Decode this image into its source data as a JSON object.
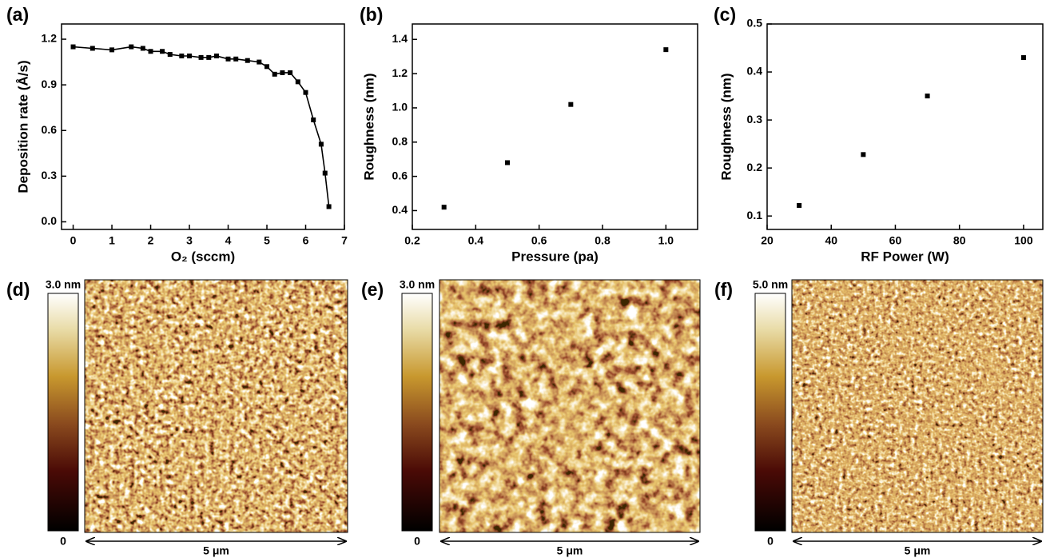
{
  "chart_data": [
    {
      "type": "line",
      "panel_label": "(a)",
      "x_label": "O₂ (sccm)",
      "y_label": "Deposition rate (Å/s)",
      "color": "#000000",
      "x": [
        0,
        0.5,
        1.0,
        1.5,
        1.8,
        2.0,
        2.3,
        2.5,
        2.8,
        3.0,
        3.3,
        3.5,
        3.7,
        4.0,
        4.2,
        4.5,
        4.8,
        5.0,
        5.2,
        5.4,
        5.6,
        5.8,
        6.0,
        6.2,
        6.4,
        6.5,
        6.6
      ],
      "values": [
        1.15,
        1.14,
        1.13,
        1.15,
        1.14,
        1.12,
        1.12,
        1.1,
        1.09,
        1.09,
        1.08,
        1.08,
        1.09,
        1.07,
        1.07,
        1.06,
        1.05,
        1.02,
        0.97,
        0.98,
        0.98,
        0.92,
        0.85,
        0.67,
        0.51,
        0.32,
        0.1
      ],
      "xlim": [
        -0.3,
        7
      ],
      "xticks": [
        0,
        1,
        2,
        3,
        4,
        5,
        6,
        7
      ],
      "ylim": [
        -0.05,
        1.3
      ],
      "yticks": [
        {
          "value": 0,
          "label": "0.0"
        },
        0.3,
        0.6,
        0.9,
        1.2
      ]
    },
    {
      "type": "scatter",
      "panel_label": "(b)",
      "x_label": "Pressure (pa)",
      "y_label": "Roughness (nm)",
      "color": "#000000",
      "x": [
        0.3,
        0.5,
        0.7,
        1.0
      ],
      "values": [
        0.42,
        0.68,
        1.02,
        1.34
      ],
      "xlim": [
        0.2,
        1.1
      ],
      "xticks": [
        0.2,
        0.4,
        0.6,
        0.8,
        {
          "value": 1.0,
          "label": "1.0"
        }
      ],
      "ylim": [
        0.29,
        1.49
      ],
      "yticks": [
        0.4,
        0.6,
        0.8,
        {
          "value": 1.0,
          "label": "1.0"
        },
        1.2,
        1.4
      ]
    },
    {
      "type": "scatter",
      "panel_label": "(c)",
      "x_label": "RF Power (W)",
      "y_label": "Roughness (nm)",
      "color": "#000000",
      "x": [
        30,
        50,
        70,
        100
      ],
      "values": [
        0.122,
        0.228,
        0.35,
        0.43
      ],
      "xlim": [
        20,
        106
      ],
      "xticks": [
        20,
        40,
        60,
        80,
        100
      ],
      "ylim": [
        0.072,
        0.5
      ],
      "yticks": [
        0.1,
        0.2,
        0.3,
        0.4,
        0.5
      ]
    }
  ],
  "afm_panels": [
    {
      "panel_label": "(d)",
      "scale_max": "3.0 nm",
      "scale_min": "0",
      "scale_bar": "5 μm"
    },
    {
      "panel_label": "(e)",
      "scale_max": "3.0 nm",
      "scale_min": "0",
      "scale_bar": "5 μm"
    },
    {
      "panel_label": "(f)",
      "scale_max": "5.0 nm",
      "scale_min": "0",
      "scale_bar": "5 μm"
    }
  ]
}
